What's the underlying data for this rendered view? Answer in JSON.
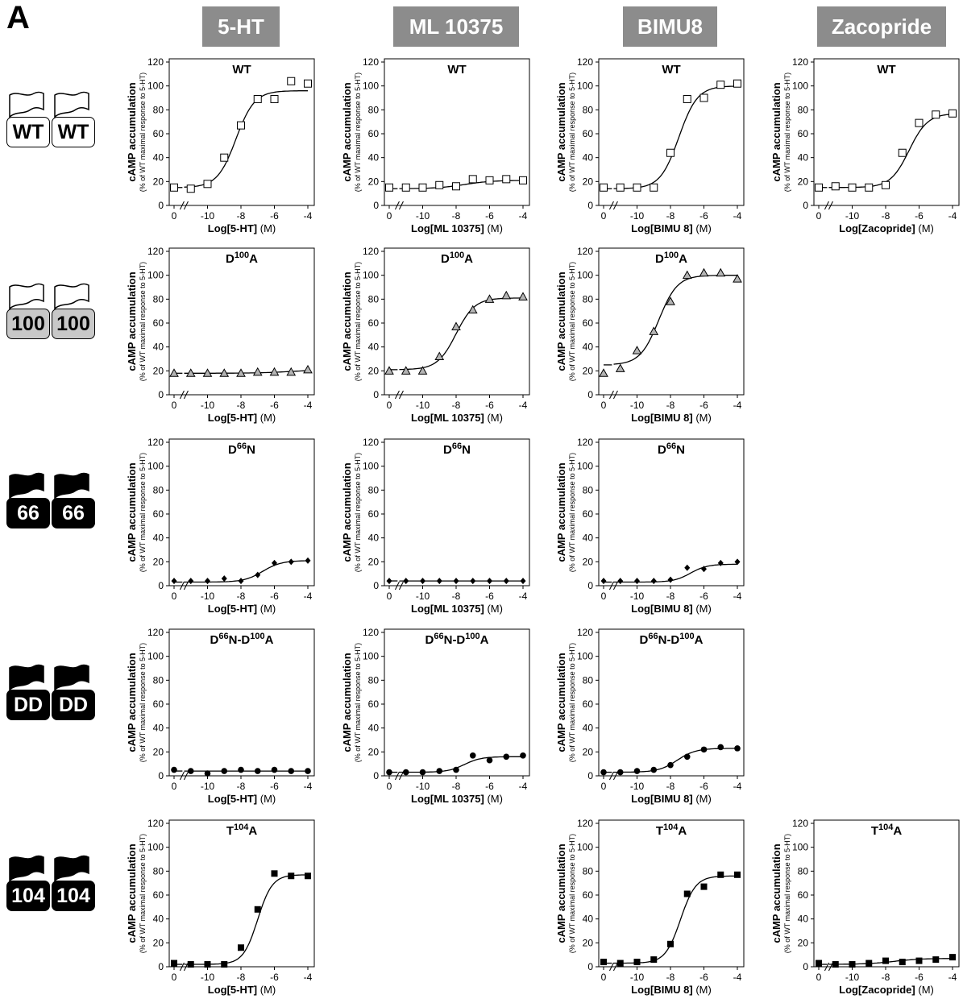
{
  "panel_label": "A",
  "column_headers": [
    "5-HT",
    "ML 10375",
    "BIMU8",
    "Zacopride"
  ],
  "row_icons": [
    {
      "label": "WT",
      "style": "white"
    },
    {
      "label": "100",
      "style": "gray"
    },
    {
      "label": "66",
      "style": "black"
    },
    {
      "label": "DD",
      "style": "black"
    },
    {
      "label": "104",
      "style": "black"
    }
  ],
  "common": {
    "ylabel": "cAMP accumulation",
    "ylabel_sub": "(% of WT maximal response to 5-HT)",
    "yticks": [
      "0",
      "20",
      "40",
      "60",
      "80",
      "100",
      "120"
    ],
    "xticks": [
      "0",
      "-10",
      "-8",
      "-6",
      "-4"
    ],
    "x_unit": "(M)"
  },
  "chart_data": [
    {
      "type": "scatter",
      "row": 0,
      "col": 0,
      "title": "WT",
      "xlabel": "Log[5-HT]",
      "marker": "open-square",
      "ylim": [
        0,
        120
      ],
      "points": [
        [
          0,
          15
        ],
        [
          1,
          14
        ],
        [
          2,
          18
        ],
        [
          3,
          40
        ],
        [
          4,
          67
        ],
        [
          5,
          89
        ],
        [
          6,
          89
        ],
        [
          7,
          104
        ],
        [
          8,
          102
        ]
      ],
      "curve": {
        "bottom": 15,
        "top": 96,
        "center": 3.7,
        "slope": 1.8
      }
    },
    {
      "type": "scatter",
      "row": 0,
      "col": 1,
      "title": "WT",
      "xlabel": "Log[ML 10375]",
      "marker": "open-square",
      "ylim": [
        0,
        120
      ],
      "points": [
        [
          0,
          15
        ],
        [
          1,
          15
        ],
        [
          2,
          15
        ],
        [
          3,
          17
        ],
        [
          4,
          16
        ],
        [
          5,
          22
        ],
        [
          6,
          21
        ],
        [
          7,
          22
        ],
        [
          8,
          21
        ]
      ],
      "curve": {
        "bottom": 14,
        "top": 21,
        "center": 4.5,
        "slope": 1.2
      }
    },
    {
      "type": "scatter",
      "row": 0,
      "col": 2,
      "title": "WT",
      "xlabel": "Log[BIMU 8]",
      "marker": "open-square",
      "ylim": [
        0,
        120
      ],
      "points": [
        [
          0,
          15
        ],
        [
          1,
          15
        ],
        [
          2,
          15
        ],
        [
          3,
          15
        ],
        [
          4,
          44
        ],
        [
          5,
          89
        ],
        [
          6,
          90
        ],
        [
          7,
          101
        ],
        [
          8,
          102
        ]
      ],
      "curve": {
        "bottom": 14,
        "top": 100,
        "center": 4.5,
        "slope": 1.8
      }
    },
    {
      "type": "scatter",
      "row": 0,
      "col": 3,
      "title": "WT",
      "xlabel": "Log[Zacopride]",
      "marker": "open-square",
      "ylim": [
        0,
        120
      ],
      "points": [
        [
          0,
          15
        ],
        [
          1,
          16
        ],
        [
          2,
          15
        ],
        [
          3,
          15
        ],
        [
          4,
          17
        ],
        [
          5,
          44
        ],
        [
          6,
          69
        ],
        [
          7,
          76
        ],
        [
          8,
          77
        ]
      ],
      "curve": {
        "bottom": 15,
        "top": 77,
        "center": 5.4,
        "slope": 1.8
      }
    },
    {
      "type": "scatter",
      "row": 1,
      "col": 0,
      "title": "D",
      "title_sup": "100",
      "title_rest": "A",
      "xlabel": "Log[5-HT]",
      "marker": "gray-triangle",
      "ylim": [
        0,
        120
      ],
      "points": [
        [
          0,
          18
        ],
        [
          1,
          18
        ],
        [
          2,
          18
        ],
        [
          3,
          18
        ],
        [
          4,
          18
        ],
        [
          5,
          19
        ],
        [
          6,
          19
        ],
        [
          7,
          19
        ],
        [
          8,
          21
        ]
      ],
      "curve": {
        "bottom": 18,
        "top": 21,
        "center": 7,
        "slope": 1
      }
    },
    {
      "type": "scatter",
      "row": 1,
      "col": 1,
      "title": "D",
      "title_sup": "100",
      "title_rest": "A",
      "xlabel": "Log[ML 10375]",
      "marker": "gray-triangle",
      "ylim": [
        0,
        120
      ],
      "points": [
        [
          0,
          20
        ],
        [
          1,
          20
        ],
        [
          2,
          20
        ],
        [
          3,
          32
        ],
        [
          4,
          57
        ],
        [
          5,
          71
        ],
        [
          6,
          80
        ],
        [
          7,
          83
        ],
        [
          8,
          82
        ]
      ],
      "curve": {
        "bottom": 21,
        "top": 81,
        "center": 4,
        "slope": 1.8
      }
    },
    {
      "type": "scatter",
      "row": 1,
      "col": 2,
      "title": "D",
      "title_sup": "100",
      "title_rest": "A",
      "xlabel": "Log[BIMU 8]",
      "marker": "gray-triangle",
      "ylim": [
        0,
        120
      ],
      "points": [
        [
          0,
          18
        ],
        [
          1,
          22
        ],
        [
          2,
          37
        ],
        [
          3,
          53
        ],
        [
          4,
          78
        ],
        [
          5,
          100
        ],
        [
          6,
          102
        ],
        [
          7,
          102
        ],
        [
          8,
          97
        ]
      ],
      "curve": {
        "bottom": 25,
        "top": 100,
        "center": 3.3,
        "slope": 1.8
      }
    },
    {
      "type": "scatter",
      "row": 2,
      "col": 0,
      "title": "D",
      "title_sup": "66",
      "title_rest": "N",
      "xlabel": "Log[5-HT]",
      "marker": "filled-diamond",
      "ylim": [
        0,
        120
      ],
      "points": [
        [
          0,
          4
        ],
        [
          1,
          4
        ],
        [
          2,
          4
        ],
        [
          3,
          6
        ],
        [
          4,
          4
        ],
        [
          5,
          9
        ],
        [
          6,
          19
        ],
        [
          7,
          20
        ],
        [
          8,
          21
        ]
      ],
      "curve": {
        "bottom": 3,
        "top": 21,
        "center": 5.3,
        "slope": 1.8
      }
    },
    {
      "type": "scatter",
      "row": 2,
      "col": 1,
      "title": "D",
      "title_sup": "66",
      "title_rest": "N",
      "xlabel": "Log[ML 10375]",
      "marker": "filled-diamond",
      "ylim": [
        0,
        120
      ],
      "points": [
        [
          0,
          4
        ],
        [
          1,
          4
        ],
        [
          2,
          4
        ],
        [
          3,
          4
        ],
        [
          4,
          4
        ],
        [
          5,
          4
        ],
        [
          6,
          4
        ],
        [
          7,
          4
        ],
        [
          8,
          4
        ]
      ],
      "curve": {
        "bottom": 4,
        "top": 4,
        "center": 4,
        "slope": 1
      }
    },
    {
      "type": "scatter",
      "row": 2,
      "col": 2,
      "title": "D",
      "title_sup": "66",
      "title_rest": "N",
      "xlabel": "Log[BIMU 8]",
      "marker": "filled-diamond",
      "ylim": [
        0,
        120
      ],
      "points": [
        [
          0,
          4
        ],
        [
          1,
          4
        ],
        [
          2,
          4
        ],
        [
          3,
          4
        ],
        [
          4,
          5
        ],
        [
          5,
          15
        ],
        [
          6,
          14
        ],
        [
          7,
          19
        ],
        [
          8,
          20
        ]
      ],
      "curve": {
        "bottom": 3,
        "top": 18,
        "center": 5.2,
        "slope": 2
      }
    },
    {
      "type": "scatter",
      "row": 3,
      "col": 0,
      "title": "D",
      "title_sup": "66",
      "title_rest": "N-D",
      "title_sup2": "100",
      "title_rest2": "A",
      "xlabel": "Log[5-HT]",
      "marker": "filled-circle",
      "ylim": [
        0,
        120
      ],
      "points": [
        [
          0,
          5
        ],
        [
          1,
          4
        ],
        [
          2,
          2
        ],
        [
          3,
          4
        ],
        [
          4,
          5
        ],
        [
          5,
          4
        ],
        [
          6,
          5
        ],
        [
          7,
          4
        ],
        [
          8,
          4
        ]
      ],
      "curve": {
        "bottom": 4,
        "top": 4,
        "center": 4,
        "slope": 1
      }
    },
    {
      "type": "scatter",
      "row": 3,
      "col": 1,
      "title": "D",
      "title_sup": "66",
      "title_rest": "N-D",
      "title_sup2": "100",
      "title_rest2": "A",
      "xlabel": "Log[ML 10375]",
      "marker": "filled-circle",
      "ylim": [
        0,
        120
      ],
      "points": [
        [
          0,
          3
        ],
        [
          1,
          3
        ],
        [
          2,
          3
        ],
        [
          3,
          4
        ],
        [
          4,
          5
        ],
        [
          5,
          17
        ],
        [
          6,
          13
        ],
        [
          7,
          16
        ],
        [
          8,
          17
        ]
      ],
      "curve": {
        "bottom": 3,
        "top": 16,
        "center": 4.5,
        "slope": 2
      }
    },
    {
      "type": "scatter",
      "row": 3,
      "col": 2,
      "title": "D",
      "title_sup": "66",
      "title_rest": "N-D",
      "title_sup2": "100",
      "title_rest2": "A",
      "xlabel": "Log[BIMU 8]",
      "marker": "filled-circle",
      "ylim": [
        0,
        120
      ],
      "points": [
        [
          0,
          3
        ],
        [
          1,
          3
        ],
        [
          2,
          4
        ],
        [
          3,
          5
        ],
        [
          4,
          9
        ],
        [
          5,
          16
        ],
        [
          6,
          22
        ],
        [
          7,
          24
        ],
        [
          8,
          23
        ]
      ],
      "curve": {
        "bottom": 3,
        "top": 23,
        "center": 4.4,
        "slope": 1.8
      }
    },
    {
      "type": "scatter",
      "row": 4,
      "col": 0,
      "title": "T",
      "title_sup": "104",
      "title_rest": "A",
      "xlabel": "Log[5-HT]",
      "marker": "filled-square",
      "ylim": [
        0,
        120
      ],
      "points": [
        [
          0,
          3
        ],
        [
          1,
          2
        ],
        [
          2,
          2
        ],
        [
          3,
          2
        ],
        [
          4,
          16
        ],
        [
          5,
          48
        ],
        [
          6,
          78
        ],
        [
          7,
          76
        ],
        [
          8,
          76
        ]
      ],
      "curve": {
        "bottom": 2,
        "top": 77,
        "center": 5,
        "slope": 2.3
      }
    },
    {
      "type": "scatter",
      "row": 4,
      "col": 2,
      "title": "T",
      "title_sup": "104",
      "title_rest": "A",
      "xlabel": "Log[BIMU 8]",
      "marker": "filled-square",
      "ylim": [
        0,
        120
      ],
      "points": [
        [
          0,
          4
        ],
        [
          1,
          3
        ],
        [
          2,
          4
        ],
        [
          3,
          6
        ],
        [
          4,
          19
        ],
        [
          5,
          61
        ],
        [
          6,
          67
        ],
        [
          7,
          77
        ],
        [
          8,
          77
        ]
      ],
      "curve": {
        "bottom": 3,
        "top": 76,
        "center": 4.6,
        "slope": 2.2
      }
    },
    {
      "type": "scatter",
      "row": 4,
      "col": 3,
      "title": "T",
      "title_sup": "104",
      "title_rest": "A",
      "xlabel": "Log[Zacopride]",
      "marker": "filled-square",
      "ylim": [
        0,
        120
      ],
      "points": [
        [
          0,
          3
        ],
        [
          1,
          2
        ],
        [
          2,
          2
        ],
        [
          3,
          3
        ],
        [
          4,
          5
        ],
        [
          5,
          4
        ],
        [
          6,
          5
        ],
        [
          7,
          6
        ],
        [
          8,
          8
        ]
      ],
      "curve": {
        "bottom": 2,
        "top": 7,
        "center": 4.5,
        "slope": 1.2
      }
    }
  ]
}
